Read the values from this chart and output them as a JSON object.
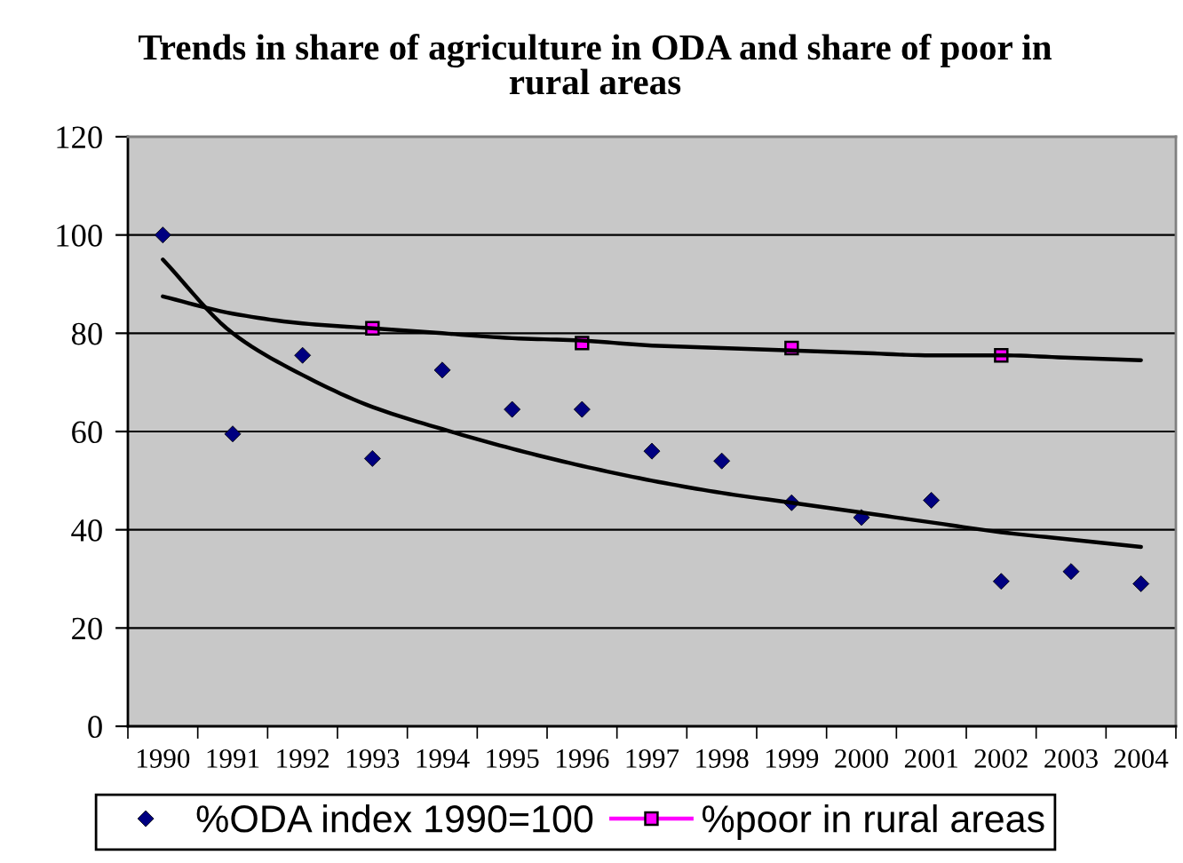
{
  "chart_data": {
    "type": "scatter",
    "title": "Trends in share of agriculture in ODA and share of poor in rural areas",
    "categories": [
      "1990",
      "1991",
      "1992",
      "1993",
      "1994",
      "1995",
      "1996",
      "1997",
      "1998",
      "1999",
      "2000",
      "2001",
      "2002",
      "2003",
      "2004"
    ],
    "series": [
      {
        "name": "%ODA index 1990=100",
        "color": "#000080",
        "marker": "diamond",
        "values": [
          100,
          59.5,
          75.5,
          54.5,
          72.5,
          64.5,
          64.5,
          56,
          54,
          45.5,
          42.5,
          46,
          29.5,
          31.5,
          29
        ]
      },
      {
        "name": "%poor in rural areas",
        "color": "#ff00ff",
        "marker": "square",
        "line_style": "solid",
        "values": [
          null,
          null,
          null,
          81,
          null,
          null,
          78,
          null,
          null,
          77,
          null,
          null,
          75.5,
          null,
          null
        ]
      },
      {
        "type": "line",
        "color": "#000000",
        "marker": "none",
        "line_style": "solid",
        "values": [
          95,
          80,
          71.5,
          65,
          60.5,
          56.5,
          53,
          50,
          47.5,
          45.5,
          43.5,
          41.5,
          39.5,
          38,
          36.5
        ]
      },
      {
        "type": "line",
        "color": "#000000",
        "marker": "none",
        "line_style": "solid",
        "values": [
          87.5,
          84,
          82,
          81,
          80,
          79,
          78.5,
          77.5,
          77,
          76.5,
          76,
          75.5,
          75.5,
          75,
          74.5
        ]
      }
    ],
    "ylim": [
      0,
      120
    ],
    "yticks": [
      0,
      20,
      40,
      60,
      80,
      100,
      120
    ],
    "grid": "y",
    "legend": "bottom"
  }
}
